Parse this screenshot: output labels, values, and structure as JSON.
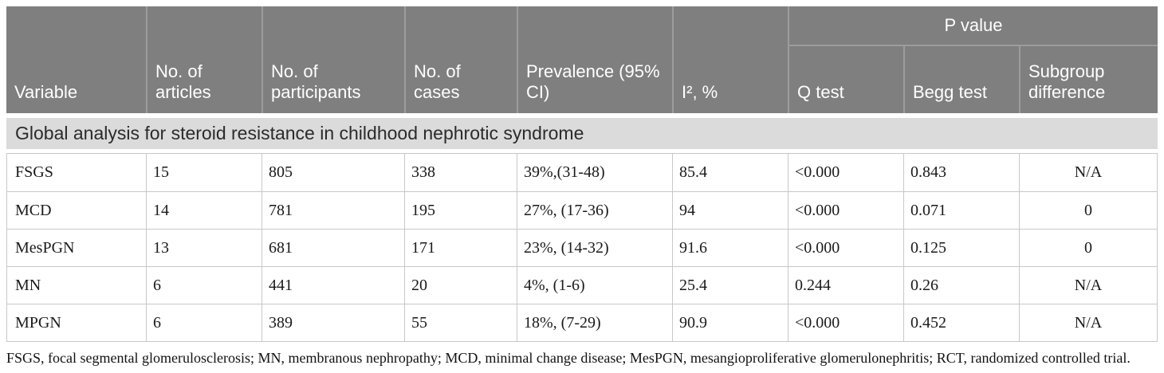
{
  "header": {
    "columns": [
      "Variable",
      "No. of articles",
      "No. of participants",
      "No. of cases",
      "Prevalence (95% CI)",
      "I², %"
    ],
    "p_value_group_label": "P value",
    "p_value_columns": [
      "Q test",
      "Begg test",
      "Subgroup difference"
    ]
  },
  "section_title": "Global analysis for steroid resistance in childhood nephrotic syndrome",
  "rows": [
    [
      "FSGS",
      "15",
      "805",
      "338",
      "39%,(31-48)",
      "85.4",
      "<0.000",
      "0.843",
      "N/A"
    ],
    [
      "MCD",
      "14",
      "781",
      "195",
      "27%, (17-36)",
      "94",
      "<0.000",
      "0.071",
      "0"
    ],
    [
      "MesPGN",
      "13",
      "681",
      "171",
      "23%, (14-32)",
      "91.6",
      "<0.000",
      "0.125",
      "0"
    ],
    [
      "MN",
      "6",
      "441",
      "20",
      "4%, (1-6)",
      "25.4",
      "0.244",
      "0.26",
      "N/A"
    ],
    [
      "MPGN",
      "6",
      "389",
      "55",
      "18%, (7-29)",
      "90.9",
      "<0.000",
      "0.452",
      "N/A"
    ]
  ],
  "footnote": "FSGS, focal segmental glomerulosclerosis; MN, membranous nephropathy; MCD, minimal change disease; MesPGN, mesangioproliferative glomerulonephritis; RCT, randomized controlled trial.",
  "colors": {
    "header_bg": "#7f7f7f",
    "header_divider": "#9c9c9c",
    "header_text": "#ffffff",
    "section_bg": "#dbdbdb",
    "row_border": "#c8c8c8",
    "body_text": "#1a1a1a"
  }
}
